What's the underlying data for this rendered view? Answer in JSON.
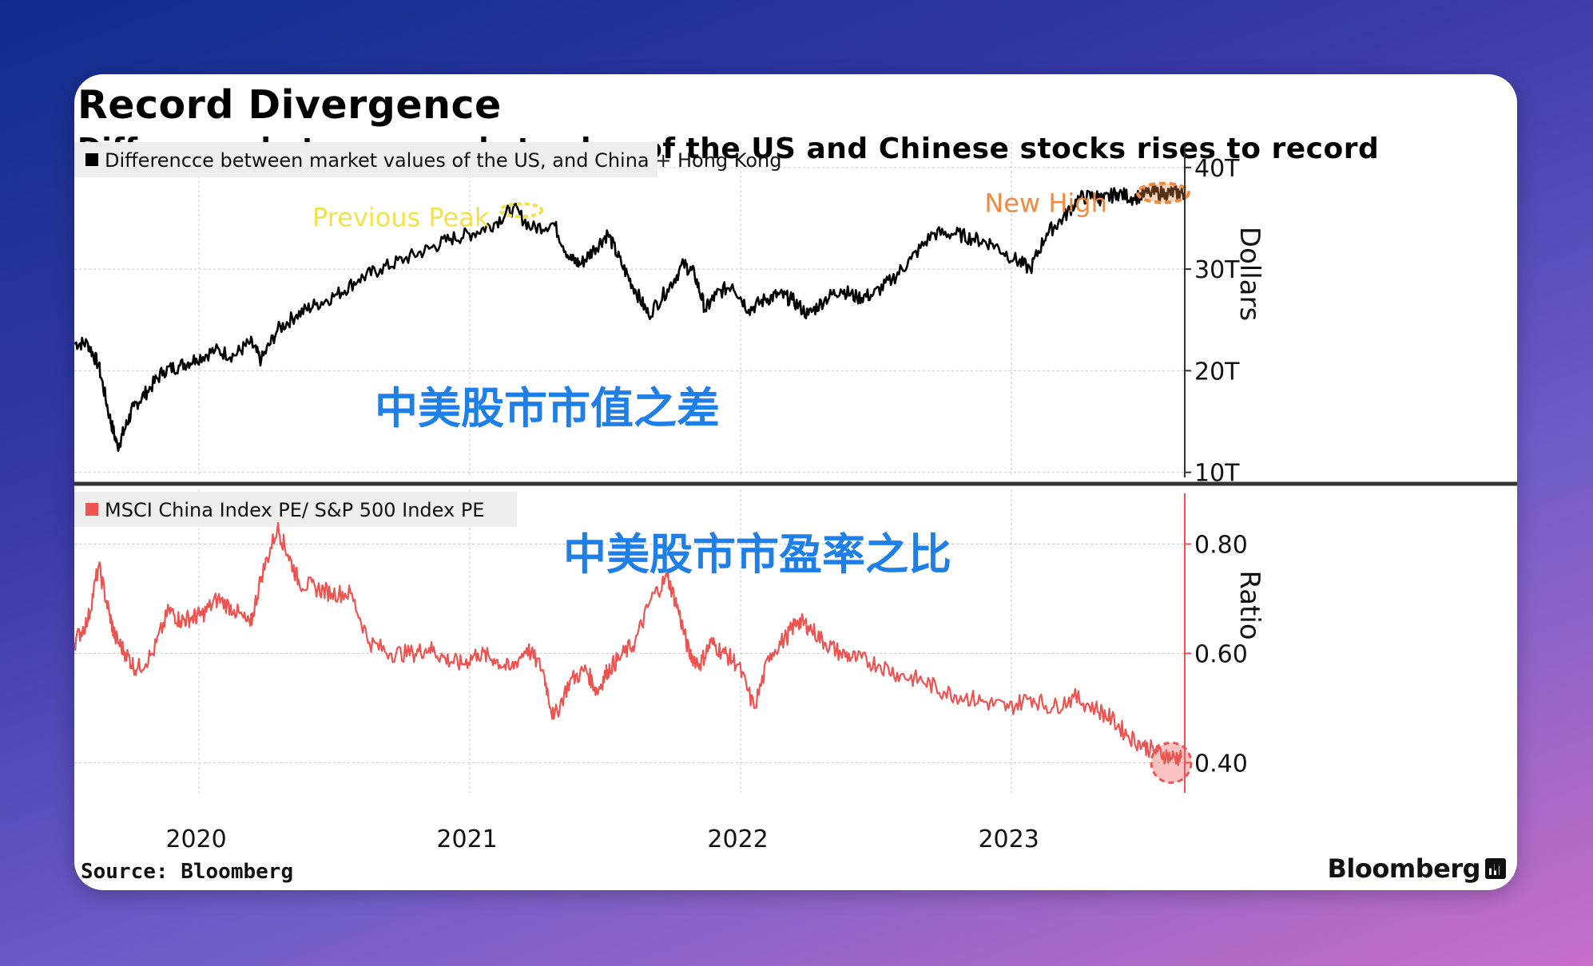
{
  "title": "Record Divergence",
  "subtitle": "Difference between market value of the US and Chinese stocks rises to record",
  "source": "Source: Bloomberg",
  "brand": "Bloomberg",
  "colors": {
    "top_series": "#000000",
    "bottom_series": "#ef5350",
    "annotation_chinese": "#1f7fe8",
    "previous_peak": "#f2e24a",
    "new_high": "#f08a42",
    "gridline": "#c8c8c8"
  },
  "chart_data": [
    {
      "type": "line",
      "panel": "top",
      "legend": "Differencce between market values of the US, and China + Hong Kong",
      "ylabel": "Dollars",
      "yticks": [
        "40T",
        "30T",
        "20T",
        "10T"
      ],
      "ytick_values": [
        40,
        30,
        20,
        10
      ],
      "ylim": [
        9.5,
        42.5
      ],
      "xlim": [
        2019.53,
        2023.63
      ],
      "grid": true,
      "series": [
        {
          "x": [
            2019.53,
            2019.58,
            2019.62,
            2019.66,
            2019.69,
            2019.72,
            2019.75,
            2019.8,
            2019.86,
            2019.92,
            2019.98,
            2020.05,
            2020.12,
            2020.18,
            2020.22,
            2020.28,
            2020.35,
            2020.42,
            2020.5,
            2020.58,
            2020.66,
            2020.75,
            2020.84,
            2020.92,
            2021.0,
            2021.08,
            2021.15,
            2021.22,
            2021.3,
            2021.36,
            2021.4,
            2021.45,
            2021.5,
            2021.55,
            2021.6,
            2021.65,
            2021.72,
            2021.78,
            2021.82,
            2021.86,
            2021.9,
            2021.96,
            2022.02,
            2022.08,
            2022.13,
            2022.18,
            2022.24,
            2022.3,
            2022.36,
            2022.42,
            2022.48,
            2022.55,
            2022.62,
            2022.7,
            2022.78,
            2022.85,
            2022.92,
            2023.0,
            2023.06,
            2023.12,
            2023.18,
            2023.24,
            2023.3,
            2023.33,
            2023.38,
            2023.44,
            2023.5,
            2023.56,
            2023.6,
            2023.63
          ],
          "y": [
            22.7,
            22.7,
            20.5,
            15.5,
            12.5,
            14.5,
            16.5,
            18.0,
            20.0,
            20.5,
            21.2,
            22.0,
            21.5,
            22.8,
            21.0,
            24.0,
            25.5,
            26.5,
            27.5,
            29.0,
            30.0,
            31.0,
            32.0,
            33.0,
            33.5,
            34.5,
            36.0,
            34.0,
            34.5,
            31.0,
            30.5,
            32.0,
            33.5,
            30.5,
            28.0,
            25.5,
            28.0,
            30.5,
            29.5,
            26.0,
            27.5,
            28.5,
            26.0,
            27.0,
            27.5,
            27.0,
            25.5,
            27.0,
            28.0,
            27.2,
            27.5,
            29.0,
            31.0,
            33.5,
            33.5,
            33.0,
            32.5,
            31.0,
            30.0,
            33.5,
            35.0,
            37.0,
            37.2,
            36.8,
            37.5,
            37.0,
            37.5,
            37.5,
            37.5,
            37.5
          ]
        }
      ],
      "annotations": [
        {
          "text": "Previous Peak",
          "x": 2021.18,
          "y": 35.8
        },
        {
          "text": "New High",
          "x": 2023.55,
          "y": 37.5
        }
      ],
      "chinese_label": "中美股市市值之差"
    },
    {
      "type": "line",
      "panel": "bottom",
      "legend": "MSCI China Index PE/ S&P 500 Index PE",
      "ylabel": "Ratio",
      "yticks": [
        "0.80",
        "0.60",
        "0.40"
      ],
      "ytick_values": [
        0.8,
        0.6,
        0.4
      ],
      "ylim": [
        0.345,
        0.9
      ],
      "xlim": [
        2019.53,
        2023.63
      ],
      "grid": true,
      "series": [
        {
          "x": [
            2019.53,
            2019.58,
            2019.62,
            2019.66,
            2019.68,
            2019.72,
            2019.76,
            2019.82,
            2019.88,
            2019.92,
            2019.96,
            2020.0,
            2020.06,
            2020.12,
            2020.18,
            2020.22,
            2020.28,
            2020.32,
            2020.36,
            2020.42,
            2020.48,
            2020.55,
            2020.62,
            2020.7,
            2020.78,
            2020.84,
            2020.9,
            2020.96,
            2021.02,
            2021.08,
            2021.14,
            2021.2,
            2021.26,
            2021.3,
            2021.36,
            2021.42,
            2021.46,
            2021.5,
            2021.54,
            2021.6,
            2021.66,
            2021.72,
            2021.76,
            2021.8,
            2021.84,
            2021.88,
            2021.93,
            2021.98,
            2022.04,
            2022.1,
            2022.16,
            2022.2,
            2022.24,
            2022.3,
            2022.36,
            2022.42,
            2022.5,
            2022.58,
            2022.66,
            2022.74,
            2022.82,
            2022.9,
            2022.98,
            2023.06,
            2023.14,
            2023.22,
            2023.3,
            2023.36,
            2023.42,
            2023.48,
            2023.53,
            2023.58,
            2023.62
          ],
          "y": [
            0.62,
            0.66,
            0.76,
            0.67,
            0.63,
            0.6,
            0.57,
            0.6,
            0.68,
            0.66,
            0.665,
            0.67,
            0.7,
            0.68,
            0.65,
            0.74,
            0.83,
            0.78,
            0.73,
            0.72,
            0.71,
            0.71,
            0.62,
            0.6,
            0.6,
            0.61,
            0.59,
            0.58,
            0.6,
            0.59,
            0.57,
            0.61,
            0.57,
            0.48,
            0.55,
            0.57,
            0.53,
            0.57,
            0.59,
            0.62,
            0.7,
            0.74,
            0.68,
            0.6,
            0.58,
            0.62,
            0.6,
            0.58,
            0.5,
            0.6,
            0.63,
            0.66,
            0.65,
            0.62,
            0.6,
            0.59,
            0.58,
            0.56,
            0.55,
            0.53,
            0.52,
            0.51,
            0.5,
            0.52,
            0.5,
            0.52,
            0.5,
            0.48,
            0.45,
            0.43,
            0.42,
            0.41,
            0.41
          ]
        }
      ],
      "annotations": [
        {
          "text": "",
          "x": 2023.58,
          "y": 0.4
        }
      ],
      "chinese_label": "中美股市市盈率之比"
    }
  ],
  "x_axis": {
    "labels": [
      "2020",
      "2021",
      "2022",
      "2023"
    ],
    "values": [
      2019.98,
      2020.98,
      2021.98,
      2022.98
    ],
    "gridlines": [
      2019.99,
      2020.99,
      2021.99,
      2022.99
    ]
  }
}
